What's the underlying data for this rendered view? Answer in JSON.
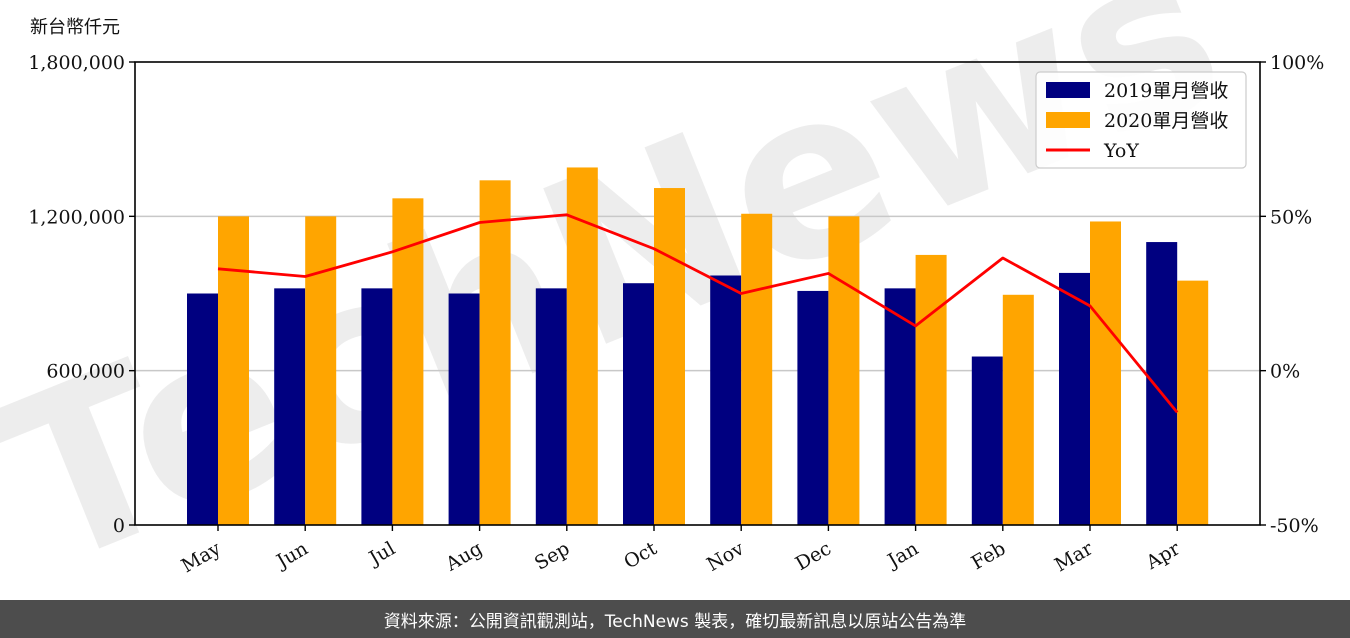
{
  "chart_data": {
    "type": "bar",
    "unit_label": "新台幣仟元",
    "categories": [
      "May",
      "Jun",
      "Jul",
      "Aug",
      "Sep",
      "Oct",
      "Nov",
      "Dec",
      "Jan",
      "Feb",
      "Mar",
      "Apr"
    ],
    "series": [
      {
        "name": "2019單月營收",
        "type": "bar",
        "axis": "left",
        "color": "#000080",
        "values": [
          900000,
          920000,
          920000,
          900000,
          920000,
          940000,
          970000,
          910000,
          920000,
          655000,
          980000,
          1100000
        ]
      },
      {
        "name": "2020單月營收",
        "type": "bar",
        "axis": "left",
        "color": "#ffa500",
        "values": [
          1200000,
          1200000,
          1270000,
          1340000,
          1390000,
          1310000,
          1210000,
          1200000,
          1050000,
          895000,
          1180000,
          950000
        ]
      },
      {
        "name": "YoY",
        "type": "line",
        "axis": "right",
        "color": "#ff0000",
        "values": [
          0.33,
          0.305,
          0.385,
          0.48,
          0.505,
          0.395,
          0.25,
          0.315,
          0.145,
          0.365,
          0.21,
          -0.135
        ]
      }
    ],
    "left_axis": {
      "ylim": [
        0,
        1800000
      ],
      "ticks": [
        0,
        600000,
        1200000,
        1800000
      ],
      "tick_labels": [
        "0",
        "600,000",
        "1,200,000",
        "1,800,000"
      ]
    },
    "right_axis": {
      "ylim": [
        -0.5,
        1.0
      ],
      "ticks": [
        -0.5,
        0,
        0.5,
        1.0
      ],
      "tick_labels": [
        "-50%",
        "0%",
        "50%",
        "100%"
      ]
    },
    "grid": "horizontal",
    "legend_position": "top-right",
    "watermark": "TechNews"
  },
  "colors": {
    "bar2019": "#000080",
    "bar2020": "#ffa500",
    "yoy": "#ff0000",
    "grid": "#c8c8c8"
  },
  "footer": {
    "text": "資料來源：公開資訊觀測站，TechNews 製表，確切最新訊息以原站公告為準"
  }
}
